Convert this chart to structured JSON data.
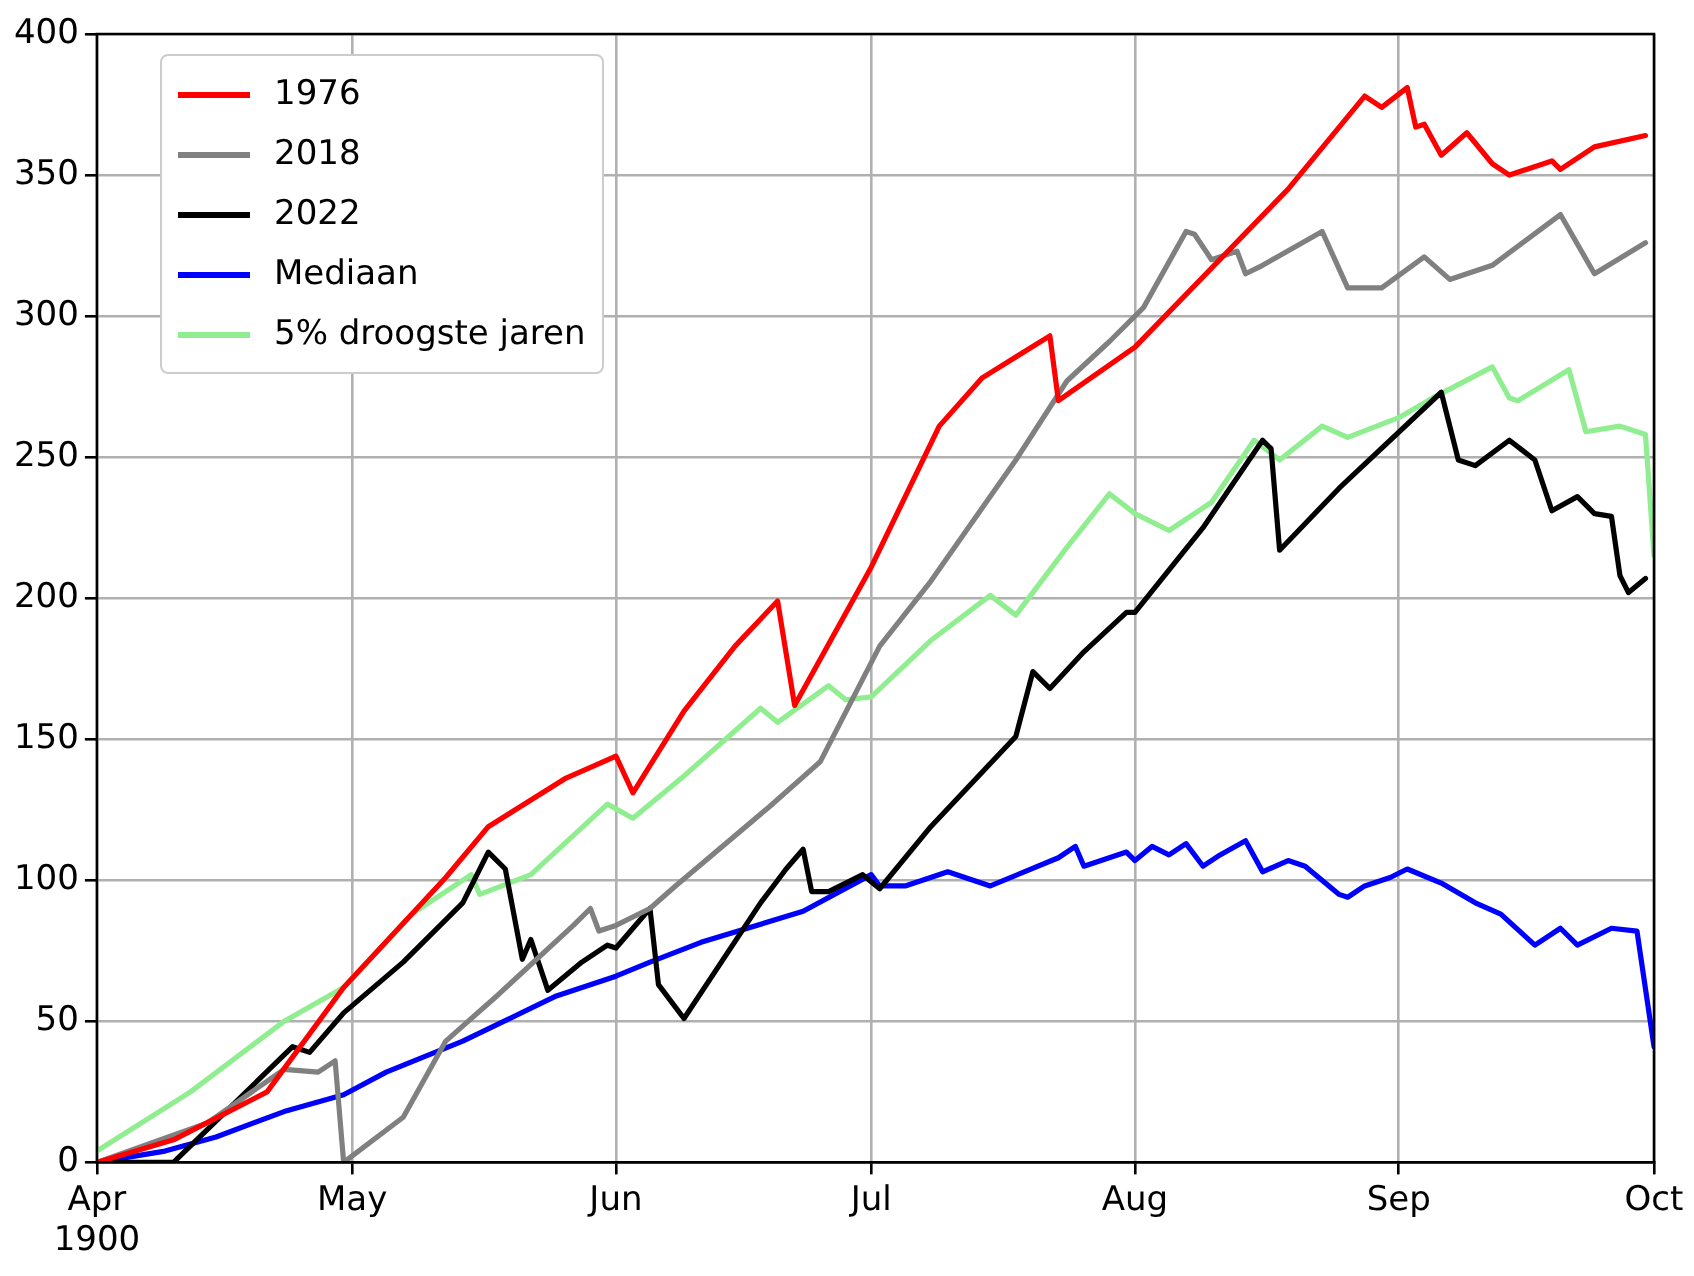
{
  "chart_data": {
    "type": "line",
    "xlim": [
      "1900-04-01",
      "1900-10-01"
    ],
    "xticks": [
      {
        "value": "1900-04-01",
        "label": "Apr\n1900"
      },
      {
        "value": "1900-05-01",
        "label": "May"
      },
      {
        "value": "1900-06-01",
        "label": "Jun"
      },
      {
        "value": "1900-07-01",
        "label": "Jul"
      },
      {
        "value": "1900-08-01",
        "label": "Aug"
      },
      {
        "value": "1900-09-01",
        "label": "Sep"
      },
      {
        "value": "1900-10-01",
        "label": "Oct"
      }
    ],
    "ylim": [
      0,
      400
    ],
    "yticks": [
      0,
      50,
      100,
      150,
      200,
      250,
      300,
      350,
      400
    ],
    "grid": true,
    "legend": "top left",
    "marker": "none",
    "line_style": "solid",
    "series": [
      {
        "name": "1976",
        "color": "#ff0000",
        "x": [
          "1900-04-01",
          "1900-04-10",
          "1900-04-21",
          "1900-04-30",
          "1900-05-12",
          "1900-05-17",
          "1900-05-26",
          "1900-06-01",
          "1900-06-03",
          "1900-06-09",
          "1900-06-15",
          "1900-06-20",
          "1900-06-22",
          "1900-07-01",
          "1900-07-09",
          "1900-07-14",
          "1900-07-22",
          "1900-07-23",
          "1900-08-01",
          "1900-08-19",
          "1900-08-28",
          "1900-08-30",
          "1900-09-02",
          "1900-09-03",
          "1900-09-04",
          "1900-09-06",
          "1900-09-09",
          "1900-09-12",
          "1900-09-14",
          "1900-09-19",
          "1900-09-20",
          "1900-09-24",
          "1900-09-30"
        ],
        "values": [
          0,
          8,
          25,
          62,
          101,
          119,
          136,
          144,
          131,
          160,
          183,
          199,
          162,
          211,
          261,
          278,
          293,
          270,
          289,
          345,
          378,
          374,
          381,
          367,
          368,
          357,
          365,
          354,
          350,
          355,
          352,
          360,
          364
        ]
      },
      {
        "name": "2018",
        "color": "#808080",
        "x": [
          "1900-04-01",
          "1900-04-14",
          "1900-04-23",
          "1900-04-27",
          "1900-04-29",
          "1900-04-30",
          "1900-05-07",
          "1900-05-12",
          "1900-05-18",
          "1900-05-27",
          "1900-05-29",
          "1900-05-30",
          "1900-06-01",
          "1900-06-05",
          "1900-06-08",
          "1900-06-19",
          "1900-06-25",
          "1900-07-02",
          "1900-07-08",
          "1900-07-18",
          "1900-07-24",
          "1900-07-29",
          "1900-08-02",
          "1900-08-07",
          "1900-08-08",
          "1900-08-10",
          "1900-08-13",
          "1900-08-14",
          "1900-08-16",
          "1900-08-23",
          "1900-08-26",
          "1900-08-30",
          "1900-09-04",
          "1900-09-07",
          "1900-09-12",
          "1900-09-20",
          "1900-09-24",
          "1900-09-30"
        ],
        "values": [
          0,
          14,
          33,
          32,
          36,
          0,
          16,
          43,
          59,
          84,
          90,
          82,
          84,
          90,
          98,
          126,
          142,
          183,
          206,
          249,
          277,
          291,
          303,
          330,
          329,
          320,
          323,
          315,
          318,
          330,
          310,
          310,
          321,
          313,
          318,
          336,
          315,
          326
        ]
      },
      {
        "name": "2022",
        "color": "#000000",
        "x": [
          "1900-04-01",
          "1900-04-10",
          "1900-04-24",
          "1900-04-26",
          "1900-04-30",
          "1900-05-07",
          "1900-05-14",
          "1900-05-17",
          "1900-05-19",
          "1900-05-21",
          "1900-05-22",
          "1900-05-24",
          "1900-05-28",
          "1900-05-31",
          "1900-06-01",
          "1900-06-05",
          "1900-06-06",
          "1900-06-09",
          "1900-06-18",
          "1900-06-21",
          "1900-06-23",
          "1900-06-24",
          "1900-06-26",
          "1900-06-30",
          "1900-07-02",
          "1900-07-08",
          "1900-07-18",
          "1900-07-20",
          "1900-07-22",
          "1900-07-26",
          "1900-07-31",
          "1900-08-01",
          "1900-08-09",
          "1900-08-16",
          "1900-08-17",
          "1900-08-18",
          "1900-08-25",
          "1900-09-06",
          "1900-09-08",
          "1900-09-10",
          "1900-09-14",
          "1900-09-17",
          "1900-09-19",
          "1900-09-22",
          "1900-09-24",
          "1900-09-26",
          "1900-09-27",
          "1900-09-28",
          "1900-09-30"
        ],
        "values": [
          0,
          0,
          41,
          39,
          53,
          71,
          92,
          110,
          104,
          72,
          79,
          61,
          71,
          77,
          76,
          90,
          63,
          51,
          92,
          104,
          111,
          96,
          96,
          102,
          97,
          119,
          151,
          174,
          168,
          181,
          195,
          195,
          225,
          256,
          253,
          217,
          239,
          273,
          249,
          247,
          256,
          249,
          231,
          236,
          230,
          229,
          208,
          202,
          207
        ]
      },
      {
        "name": "Mediaan",
        "color": "#0000ff",
        "x": [
          "1900-04-01",
          "1900-04-09",
          "1900-04-15",
          "1900-04-23",
          "1900-04-30",
          "1900-05-05",
          "1900-05-14",
          "1900-05-25",
          "1900-06-01",
          "1900-06-05",
          "1900-06-11",
          "1900-06-23",
          "1900-07-01",
          "1900-07-02",
          "1900-07-05",
          "1900-07-10",
          "1900-07-15",
          "1900-07-23",
          "1900-07-25",
          "1900-07-26",
          "1900-07-31",
          "1900-08-01",
          "1900-08-03",
          "1900-08-05",
          "1900-08-07",
          "1900-08-09",
          "1900-08-11",
          "1900-08-14",
          "1900-08-16",
          "1900-08-19",
          "1900-08-21",
          "1900-08-25",
          "1900-08-26",
          "1900-08-28",
          "1900-08-31",
          "1900-09-02",
          "1900-09-06",
          "1900-09-10",
          "1900-09-13",
          "1900-09-17",
          "1900-09-20",
          "1900-09-22",
          "1900-09-26",
          "1900-09-29",
          "1900-10-01"
        ],
        "values": [
          0,
          4,
          9,
          18,
          24,
          32,
          43,
          59,
          66,
          71,
          78,
          89,
          102,
          98,
          98,
          103,
          98,
          108,
          112,
          105,
          110,
          107,
          112,
          109,
          113,
          105,
          109,
          114,
          103,
          107,
          105,
          95,
          94,
          98,
          101,
          104,
          99,
          92,
          88,
          77,
          83,
          77,
          83,
          82,
          41
        ]
      },
      {
        "name": "5% droogste jaren",
        "color": "#90ee90",
        "x": [
          "1900-04-01",
          "1900-04-12",
          "1900-04-23",
          "1900-04-30",
          "1900-05-08",
          "1900-05-15",
          "1900-05-16",
          "1900-05-22",
          "1900-05-31",
          "1900-06-03",
          "1900-06-09",
          "1900-06-18",
          "1900-06-20",
          "1900-06-26",
          "1900-06-28",
          "1900-07-01",
          "1900-07-08",
          "1900-07-15",
          "1900-07-18",
          "1900-07-24",
          "1900-07-29",
          "1900-08-01",
          "1900-08-05",
          "1900-08-10",
          "1900-08-15",
          "1900-08-18",
          "1900-08-23",
          "1900-08-26",
          "1900-09-01",
          "1900-09-05",
          "1900-09-12",
          "1900-09-14",
          "1900-09-15",
          "1900-09-21",
          "1900-09-23",
          "1900-09-27",
          "1900-09-30",
          "1900-10-01"
        ],
        "values": [
          4,
          25,
          50,
          62,
          88,
          102,
          95,
          102,
          127,
          122,
          137,
          161,
          156,
          169,
          164,
          165,
          185,
          201,
          194,
          218,
          237,
          230,
          224,
          234,
          256,
          249,
          261,
          257,
          264,
          271,
          282,
          271,
          270,
          281,
          259,
          261,
          258,
          215
        ]
      }
    ]
  }
}
